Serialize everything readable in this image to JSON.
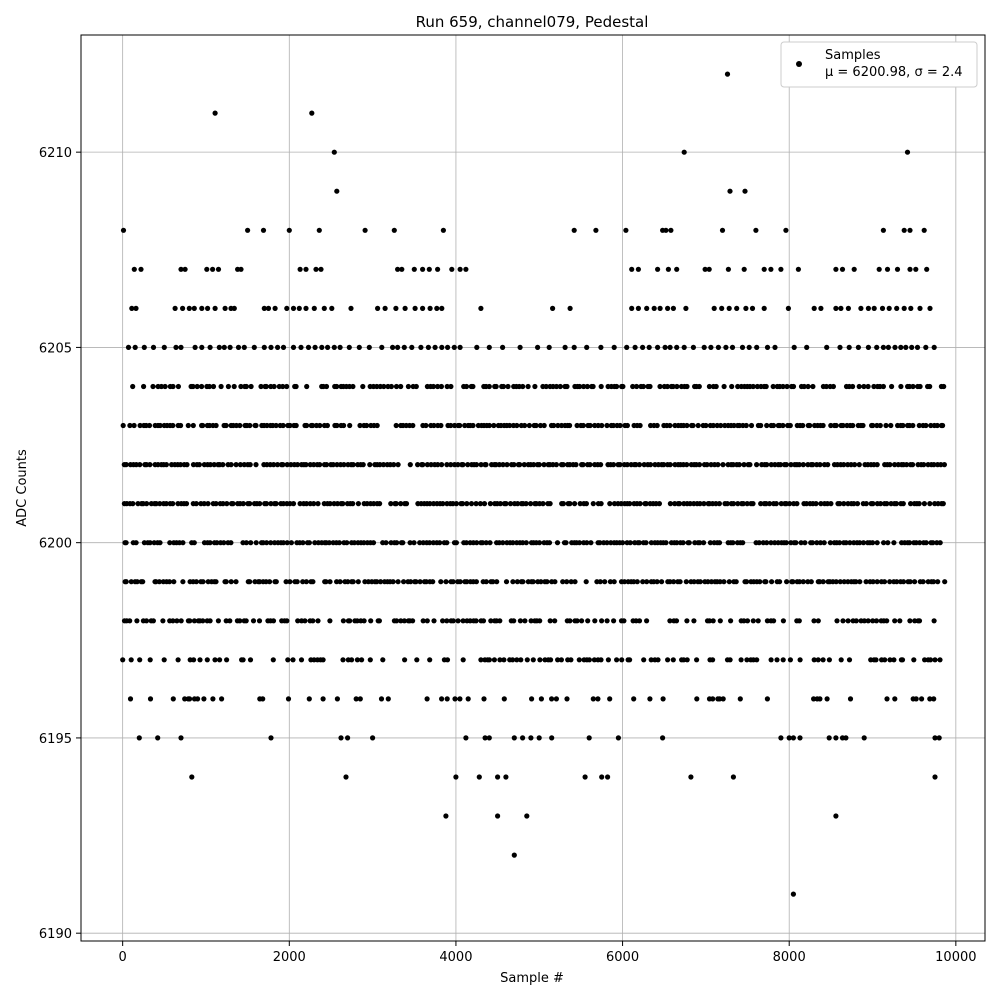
{
  "chart_data": {
    "type": "scatter",
    "title": "Run 659, channel079, Pedestal",
    "xlabel": "Sample #",
    "ylabel": "ADC Counts",
    "xlim": [
      -500,
      10350
    ],
    "ylim": [
      6189.8,
      6213
    ],
    "xticks": [
      0,
      2000,
      4000,
      6000,
      8000,
      10000
    ],
    "yticks": [
      6190,
      6195,
      6200,
      6205,
      6210
    ],
    "grid": true,
    "legend": {
      "placement": "top-right",
      "entries": [
        "Samples",
        "μ = 6200.98, σ = 2.4"
      ]
    },
    "marker_color": "#000000",
    "series": [
      {
        "name": "Samples",
        "bands": [
          {
            "y": 6195,
            "x": [
              200,
              420,
              700,
              1780,
              2620,
              2700,
              3000,
              4120,
              4350,
              4400,
              4700,
              4800,
              4900,
              5000,
              5150,
              5600,
              5950,
              6480,
              7900,
              8000,
              8050,
              8130,
              8480,
              8560,
              8640,
              8680,
              8900,
              9750,
              9800
            ]
          },
          {
            "y": 6194,
            "x": [
              830,
              2680,
              4000,
              4280,
              4500,
              4600,
              5550,
              5750,
              5820,
              6820,
              7330,
              9750
            ]
          },
          {
            "y": 6193,
            "x": [
              3880,
              4500,
              4850,
              8560
            ]
          },
          {
            "y": 6192,
            "x": [
              4700
            ]
          },
          {
            "y": 6191,
            "x": [
              8050
            ]
          },
          {
            "y": 6208,
            "x": [
              10,
              1500,
              1690,
              2000,
              2360,
              2910,
              3260,
              3850,
              5420,
              5680,
              6040,
              6480,
              6520,
              6580,
              7200,
              7600,
              7960,
              9130,
              9380,
              9450,
              9620
            ]
          },
          {
            "y": 6209,
            "x": [
              2570,
              7290,
              7470
            ]
          },
          {
            "y": 6210,
            "x": [
              2540,
              6740,
              9420
            ]
          },
          {
            "y": 6211,
            "x": [
              1110,
              2270
            ]
          },
          {
            "y": 6212,
            "x": [
              7260
            ]
          },
          {
            "y": 6207,
            "x": [
              140,
              220,
              700,
              750,
              1010,
              1080,
              1150,
              1380,
              1420,
              2130,
              2200,
              2320,
              2380,
              3300,
              3350,
              3500,
              3600,
              3680,
              3780,
              3950,
              4050,
              4120,
              6110,
              6190,
              6420,
              6550,
              6650,
              6990,
              7040,
              7270,
              7460,
              7700,
              7780,
              7900,
              8110,
              8560,
              8640,
              8780,
              9080,
              9180,
              9300,
              9450,
              9520,
              9650
            ]
          },
          {
            "y": 6206,
            "x": [
              110,
              160,
              630,
              720,
              800,
              860,
              950,
              1020,
              1110,
              1230,
              1300,
              1340,
              1700,
              1750,
              1830,
              1970,
              2050,
              2120,
              2200,
              2300,
              2420,
              2510,
              2740,
              3060,
              3150,
              3280,
              3390,
              3510,
              3600,
              3690,
              3770,
              3830,
              4300,
              5160,
              5370,
              6110,
              6190,
              6290,
              6380,
              6450,
              6540,
              6610,
              6760,
              7100,
              7190,
              7280,
              7370,
              7480,
              7560,
              7700,
              7990,
              8300,
              8380,
              8560,
              8620,
              8710,
              8860,
              8950,
              9020,
              9120,
              9200,
              9290,
              9380,
              9460,
              9570,
              9690
            ]
          },
          {
            "y": 6205,
            "x": [
              70,
              150,
              260,
              370,
              500,
              640,
              700,
              870,
              950,
              1050,
              1160,
              1220,
              1290,
              1390,
              1460,
              1580,
              1700,
              1780,
              1860,
              1930,
              2050,
              2140,
              2230,
              2310,
              2390,
              2460,
              2540,
              2610,
              2720,
              2840,
              2960,
              3110,
              3240,
              3300,
              3380,
              3470,
              3580,
              3670,
              3750,
              3830,
              3900,
              3980,
              4050,
              4250,
              4400,
              4560,
              4770,
              4980,
              5120,
              5310,
              5420,
              5570,
              5740,
              5900,
              6050,
              6150,
              6240,
              6320,
              6420,
              6510,
              6570,
              6650,
              6740,
              6850,
              6980,
              7060,
              7150,
              7240,
              7320,
              7440,
              7520,
              7610,
              7740,
              7830,
              8060,
              8210,
              8450,
              8610,
              8720,
              8830,
              8950,
              9050,
              9130,
              9190,
              9270,
              9340,
              9400,
              9470,
              9540,
              9640,
              9740
            ]
          }
        ]
      }
    ]
  },
  "dense_bands": [
    6196,
    6197,
    6198,
    6199,
    6200,
    6201,
    6202,
    6203,
    6204
  ]
}
